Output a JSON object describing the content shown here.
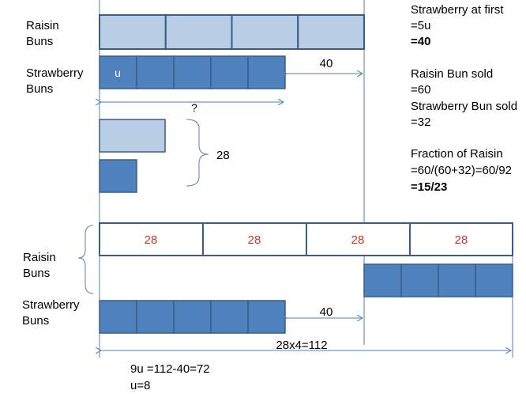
{
  "colors": {
    "light_fill": "#b9cde5",
    "dark_fill": "#4f81bd",
    "stroke": "#385d8a",
    "number_red": "#c0392b",
    "arrow": "#4f81bd"
  },
  "labels": {
    "raisin_buns_1": "Raisin\nBuns",
    "strawberry_buns_1": "Strawberry\nBuns",
    "raisin_buns_2": "Raisin\nBuns",
    "strawberry_buns_2": "Strawberry\nBuns"
  },
  "top_model": {
    "unit_label": "u",
    "gap_label": "40",
    "question_mark": "?",
    "brace_label": "28"
  },
  "bottom_model": {
    "raisin_units": [
      "28",
      "28",
      "28",
      "28"
    ],
    "gap_label": "40",
    "total_label": "28x4=112"
  },
  "working": {
    "line1": "9u =112-40=72",
    "line2": "u=8"
  },
  "solution": {
    "strawberry_first_title": "Strawberry at first",
    "strawberry_first_eq": "=5u",
    "strawberry_first_answer": "=40",
    "raisin_sold_title": "Raisin Bun sold",
    "raisin_sold_value": "=60",
    "strawberry_sold_title": "Strawberry Bun sold",
    "strawberry_sold_value": "=32",
    "fraction_title": "Fraction of Raisin",
    "fraction_eq": "=60/(60+32)=60/92",
    "fraction_answer": "=15/23"
  }
}
